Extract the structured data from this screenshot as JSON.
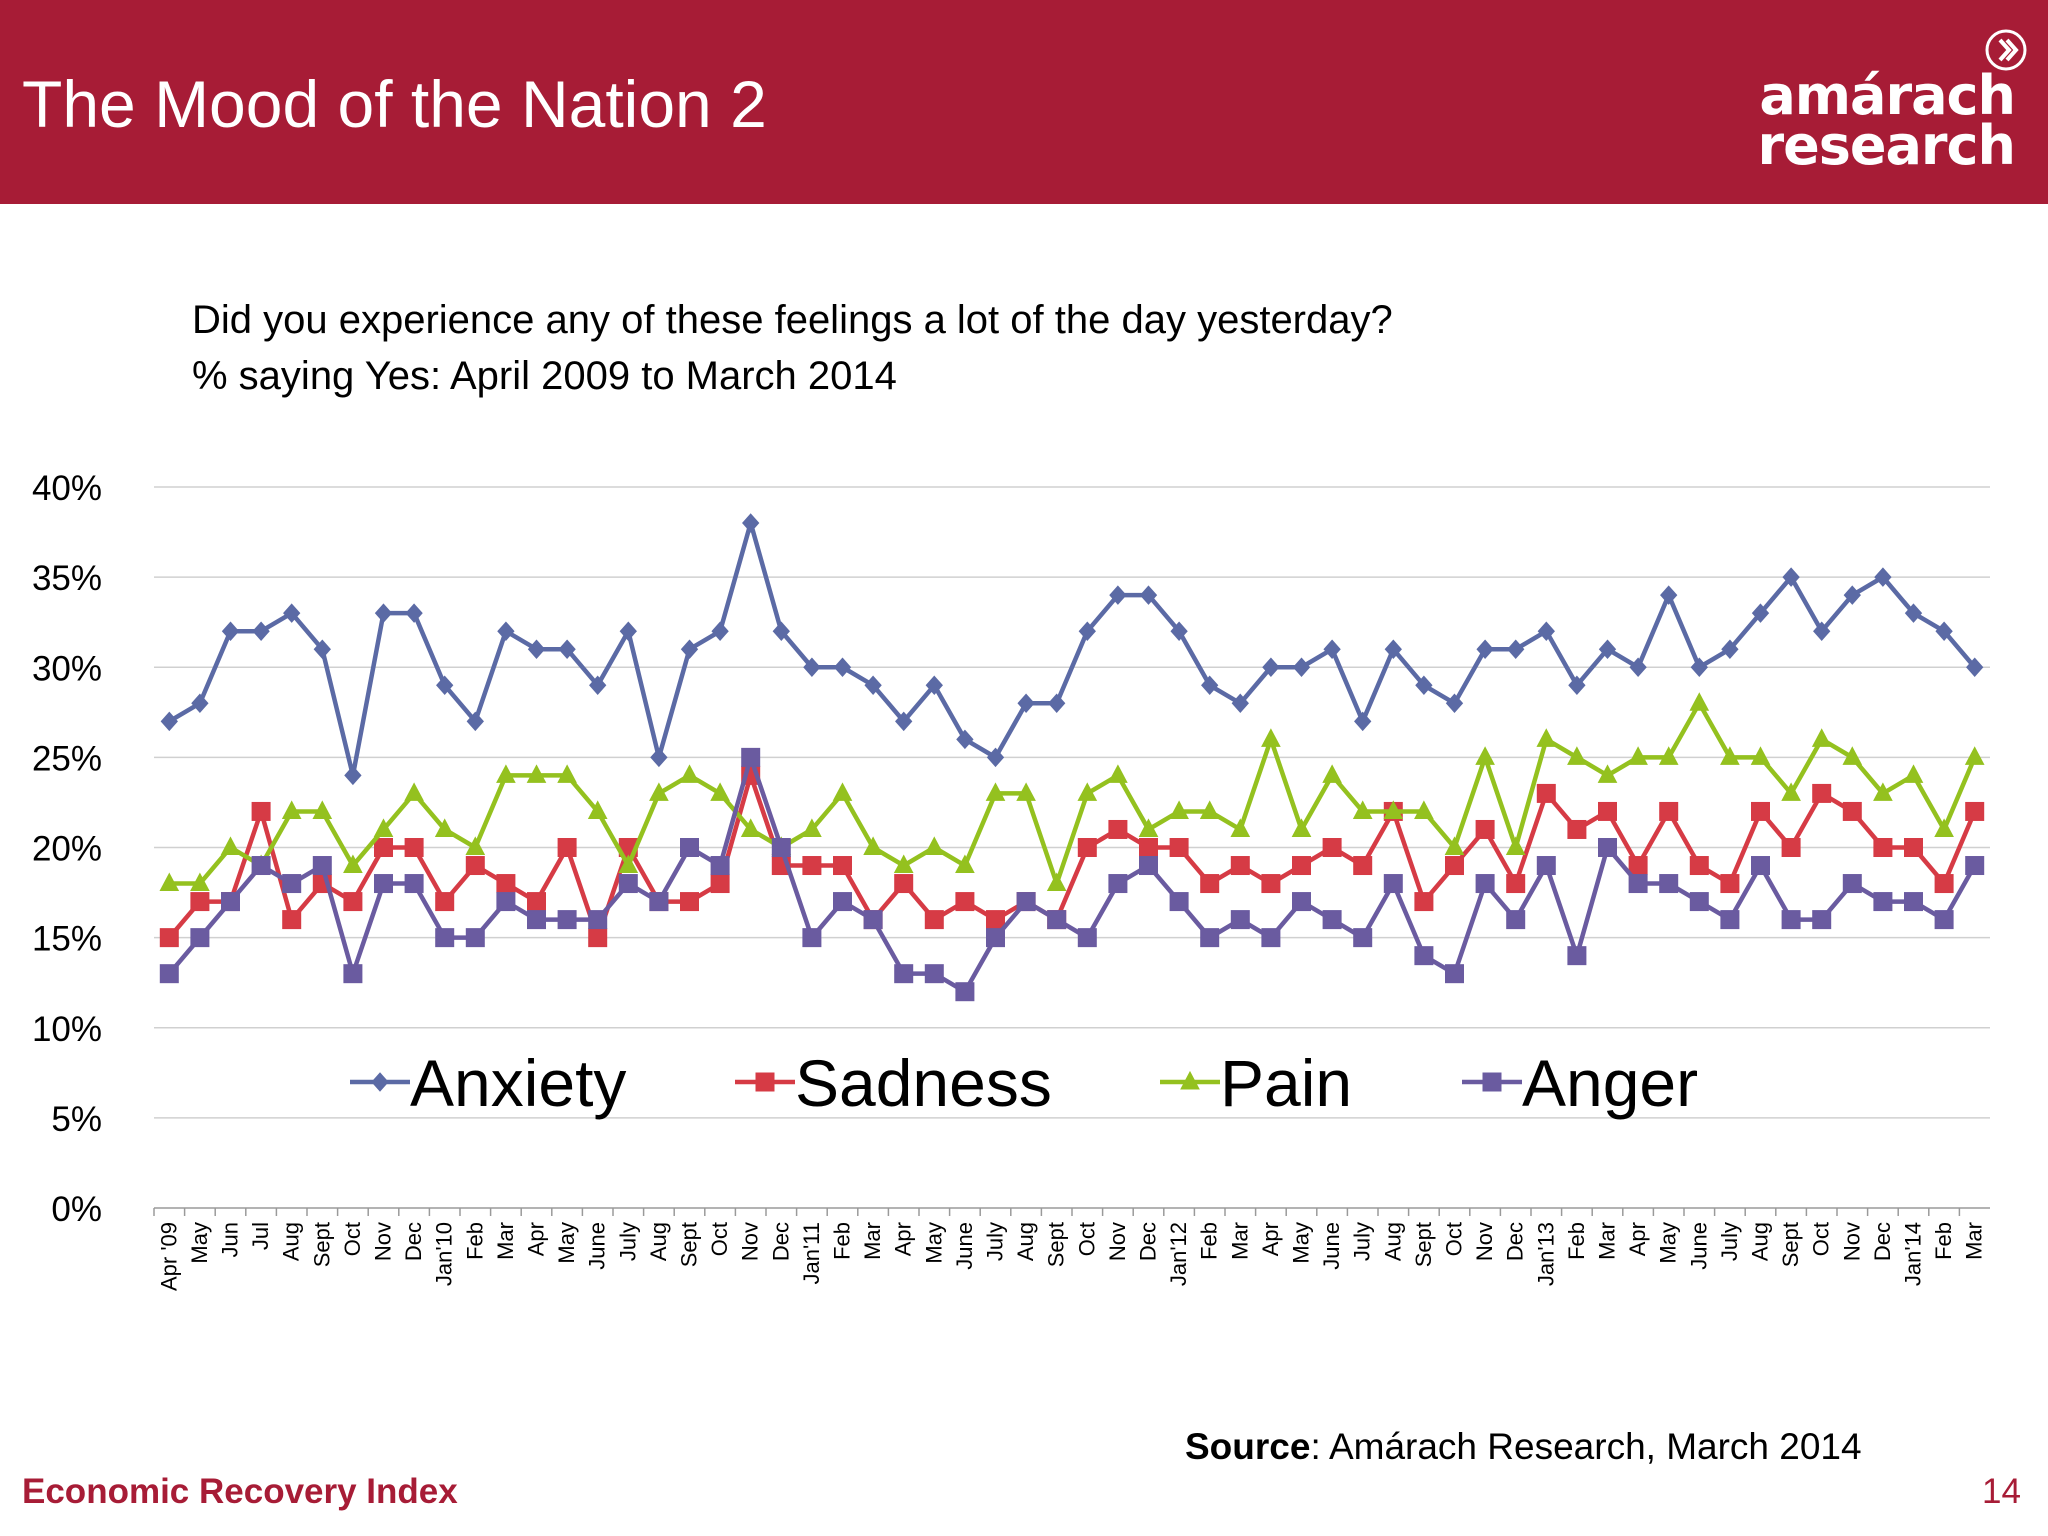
{
  "slide": {
    "title": "The Mood of the Nation 2",
    "logo_line1": "amárach",
    "logo_line2": "research",
    "question_line1": "Did you experience any of these feelings a lot of the day yesterday?",
    "question_line2": "% saying Yes: April 2009 to March 2014",
    "source_label": "Source",
    "source_text": ": Amárach Research, March 2014",
    "footer": "Economic Recovery Index",
    "page_number": "14"
  },
  "chart_data": {
    "type": "line",
    "ylim": [
      0,
      40
    ],
    "yticks": [
      "0%",
      "5%",
      "10%",
      "15%",
      "20%",
      "25%",
      "30%",
      "35%",
      "40%"
    ],
    "grid": true,
    "legend_placement": "inside-center",
    "categories": [
      "Apr '09",
      "May",
      "Jun",
      "Jul",
      "Aug",
      "Sept",
      "Oct",
      "Nov",
      "Dec",
      "Jan'10",
      "Feb",
      "Mar",
      "Apr",
      "May",
      "June",
      "July",
      "Aug",
      "Sept",
      "Oct",
      "Nov",
      "Dec",
      "Jan'11",
      "Feb",
      "Mar",
      "Apr",
      "May",
      "June",
      "July",
      "Aug",
      "Sept",
      "Oct",
      "Nov",
      "Dec",
      "Jan'12",
      "Feb",
      "Mar",
      "Apr",
      "May",
      "June",
      "July",
      "Aug",
      "Sept",
      "Oct",
      "Nov",
      "Dec",
      "Jan'13",
      "Feb",
      "Mar",
      "Apr",
      "May",
      "June",
      "July",
      "Aug",
      "Sept",
      "Oct",
      "Nov",
      "Dec",
      "Jan'14",
      "Feb",
      "Mar"
    ],
    "series": [
      {
        "name": "Anxiety",
        "color": "#5b6aa5",
        "marker": "diamond",
        "values": [
          27,
          28,
          32,
          32,
          33,
          31,
          24,
          33,
          33,
          29,
          27,
          32,
          31,
          31,
          29,
          32,
          25,
          31,
          32,
          38,
          32,
          30,
          30,
          29,
          27,
          29,
          26,
          25,
          28,
          28,
          32,
          34,
          34,
          32,
          29,
          28,
          30,
          30,
          31,
          27,
          31,
          29,
          28,
          31,
          31,
          32,
          29,
          31,
          30,
          34,
          30,
          31,
          33,
          35,
          32,
          34,
          35,
          33,
          32,
          30
        ]
      },
      {
        "name": "Sadness",
        "color": "#d63b45",
        "marker": "square",
        "values": [
          15,
          17,
          17,
          22,
          16,
          18,
          17,
          20,
          20,
          17,
          19,
          18,
          17,
          20,
          15,
          20,
          17,
          17,
          18,
          24,
          19,
          19,
          19,
          16,
          18,
          16,
          17,
          16,
          17,
          16,
          20,
          21,
          20,
          20,
          18,
          19,
          18,
          19,
          20,
          19,
          22,
          17,
          19,
          21,
          18,
          23,
          21,
          22,
          19,
          22,
          19,
          18,
          22,
          20,
          23,
          22,
          20,
          20,
          18,
          22
        ]
      },
      {
        "name": "Pain",
        "color": "#94c11f",
        "marker": "triangle",
        "values": [
          18,
          18,
          20,
          19,
          22,
          22,
          19,
          21,
          23,
          21,
          20,
          24,
          24,
          24,
          22,
          19,
          23,
          24,
          23,
          21,
          20,
          21,
          23,
          20,
          19,
          20,
          19,
          23,
          23,
          18,
          23,
          24,
          21,
          22,
          22,
          21,
          26,
          21,
          24,
          22,
          22,
          22,
          20,
          25,
          20,
          26,
          25,
          24,
          25,
          25,
          28,
          25,
          25,
          23,
          26,
          25,
          23,
          24,
          21,
          25
        ]
      },
      {
        "name": "Anger",
        "color": "#6a5ba0",
        "marker": "square",
        "values": [
          13,
          15,
          17,
          19,
          18,
          19,
          13,
          18,
          18,
          15,
          15,
          17,
          16,
          16,
          16,
          18,
          17,
          20,
          19,
          25,
          20,
          15,
          17,
          16,
          13,
          13,
          12,
          15,
          17,
          16,
          15,
          18,
          19,
          17,
          15,
          16,
          15,
          17,
          16,
          15,
          18,
          14,
          13,
          18,
          16,
          19,
          14,
          20,
          18,
          18,
          17,
          16,
          19,
          16,
          16,
          18,
          17,
          17,
          16,
          19
        ]
      }
    ]
  }
}
